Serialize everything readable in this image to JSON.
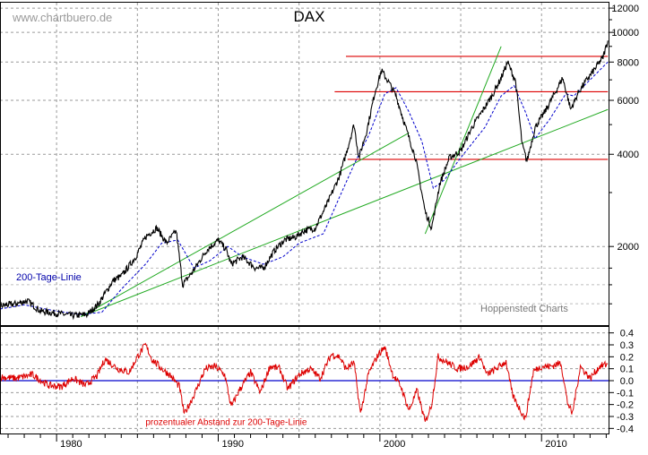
{
  "watermark": "www.chartbuero.de",
  "source": "Hoppenstedt Charts",
  "chart_data": [
    {
      "type": "line",
      "title": "DAX",
      "yscale": "log",
      "ylim": [
        1100,
        12500
      ],
      "xlim": [
        1976.5,
        2014.2
      ],
      "yticks": [
        12000,
        10000,
        8000,
        6000,
        4000,
        2000
      ],
      "xticks": [
        "1980",
        "1990",
        "2000",
        "2010"
      ],
      "grid": true,
      "series": [
        {
          "label": "",
          "color": "#000000",
          "x": [
            1976.5,
            1977.5,
            1978.2,
            1979.0,
            1980.0,
            1981.0,
            1981.9,
            1982.6,
            1983.5,
            1984.0,
            1984.9,
            1985.5,
            1986.2,
            1986.8,
            1987.4,
            1987.8,
            1988.4,
            1989.3,
            1990.0,
            1990.5,
            1990.8,
            1991.5,
            1992.3,
            1992.8,
            1993.5,
            1994.1,
            1994.8,
            1995.3,
            1996.0,
            1996.8,
            1997.5,
            1997.9,
            1998.4,
            1998.7,
            1999.2,
            1999.7,
            2000.1,
            2000.6,
            2001.0,
            2001.7,
            2002.2,
            2002.8,
            2003.2,
            2003.7,
            2004.3,
            2005.0,
            2005.7,
            2006.4,
            2007.0,
            2007.5,
            2007.9,
            2008.4,
            2008.8,
            2009.1,
            2009.6,
            2010.2,
            2010.8,
            2011.3,
            2011.6,
            2011.8,
            2012.3,
            2012.8,
            2013.3,
            2013.8,
            2014.1
          ],
          "values": [
            1280,
            1300,
            1330,
            1230,
            1210,
            1190,
            1200,
            1300,
            1550,
            1600,
            1850,
            2150,
            2300,
            2050,
            2250,
            1500,
            1650,
            1950,
            2100,
            1950,
            1750,
            1850,
            1700,
            1700,
            1950,
            2100,
            2150,
            2250,
            2300,
            2800,
            3400,
            4000,
            5000,
            3900,
            4800,
            6400,
            7500,
            6800,
            6200,
            4700,
            3900,
            2600,
            2300,
            3200,
            3900,
            4100,
            4900,
            5600,
            6300,
            7100,
            8000,
            6900,
            4300,
            3800,
            4900,
            5500,
            6300,
            7100,
            6200,
            5600,
            6400,
            7000,
            7600,
            8300,
            9400
          ]
        },
        {
          "label": "200-Tage-Linie",
          "color": "#0000cc",
          "x": [
            1976.5,
            1978.0,
            1980.0,
            1981.5,
            1982.8,
            1984.0,
            1985.5,
            1986.5,
            1987.5,
            1988.5,
            1989.5,
            1990.6,
            1991.5,
            1992.8,
            1994.0,
            1995.0,
            1996.5,
            1997.5,
            1998.5,
            1999.3,
            2000.3,
            2001.0,
            2001.8,
            2002.6,
            2003.3,
            2004.0,
            2005.0,
            2006.5,
            2007.5,
            2008.3,
            2009.0,
            2009.6,
            2010.5,
            2011.5,
            2012.0,
            2013.0,
            2014.1
          ],
          "values": [
            1250,
            1290,
            1230,
            1200,
            1220,
            1450,
            1750,
            2050,
            2100,
            1700,
            1800,
            2000,
            1850,
            1750,
            1850,
            2050,
            2200,
            2900,
            3800,
            4600,
            6300,
            6600,
            5500,
            4400,
            3100,
            3300,
            3900,
            4900,
            6200,
            6700,
            5500,
            4500,
            5200,
            6300,
            6200,
            7000,
            8000
          ]
        }
      ],
      "trendlines": [
        {
          "color": "#22aa22",
          "from": [
            1981.5,
            1180
          ],
          "to": [
            2001.8,
            4700
          ]
        },
        {
          "color": "#22aa22",
          "from": [
            1981.5,
            1180
          ],
          "to": [
            2014.1,
            5600
          ]
        },
        {
          "color": "#22aa22",
          "from": [
            2002.8,
            2200
          ],
          "to": [
            2007.5,
            9000
          ]
        }
      ],
      "levels": [
        {
          "color": "#dd0000",
          "value": 8350,
          "from": 1997.9,
          "to": 2014.1
        },
        {
          "color": "#dd0000",
          "value": 6400,
          "from": 1997.2,
          "to": 2014.1
        },
        {
          "color": "#dd0000",
          "value": 3850,
          "from": 1998.0,
          "to": 2014.1
        }
      ],
      "annotations": [
        {
          "text": "200-Tage-Linie",
          "x": 1977.5,
          "y": 1550
        }
      ]
    },
    {
      "type": "line",
      "title": "",
      "ylim": [
        -0.45,
        0.45
      ],
      "xlim": [
        1976.5,
        2014.2
      ],
      "yticks": [
        0.4,
        0.3,
        0.2,
        0.1,
        0.0,
        -0.1,
        -0.2,
        -0.3,
        -0.4
      ],
      "ytick_labels": [
        "0.4",
        "0.3",
        "0.2",
        "0.1",
        "0.0",
        "-0.1",
        "-0.2",
        "-0.3",
        "-0.4"
      ],
      "xticks": [
        "1980",
        "1990",
        "2000",
        "2010"
      ],
      "grid": true,
      "zero_line_color": "#0000cc",
      "series": [
        {
          "label": "prozentualer Abstand zur 200-Tage-Linie",
          "color": "#dd0000",
          "x": [
            1976.5,
            1977.5,
            1978.5,
            1979.5,
            1980.3,
            1981.0,
            1981.8,
            1982.5,
            1983.0,
            1983.8,
            1984.5,
            1985.0,
            1985.5,
            1985.9,
            1986.5,
            1987.0,
            1987.6,
            1987.9,
            1988.5,
            1989.2,
            1989.8,
            1990.4,
            1990.8,
            1991.3,
            1992.0,
            1992.6,
            1993.2,
            1993.8,
            1994.3,
            1995.0,
            1995.7,
            1996.3,
            1997.0,
            1997.5,
            1997.9,
            1998.4,
            1998.8,
            1999.3,
            1999.9,
            2000.3,
            2000.8,
            2001.3,
            2001.8,
            2002.3,
            2002.8,
            2003.2,
            2003.6,
            2004.2,
            2004.8,
            2005.5,
            2006.2,
            2006.6,
            2007.2,
            2007.8,
            2008.2,
            2008.7,
            2009.0,
            2009.5,
            2010.0,
            2010.6,
            2011.2,
            2011.6,
            2011.9,
            2012.4,
            2013.0,
            2013.6,
            2014.1
          ],
          "values": [
            0.03,
            0.02,
            0.05,
            -0.04,
            -0.05,
            0.02,
            -0.04,
            0.04,
            0.18,
            0.1,
            0.07,
            0.2,
            0.3,
            0.18,
            0.1,
            0.05,
            -0.05,
            -0.28,
            -0.12,
            0.1,
            0.12,
            0.05,
            -0.22,
            -0.08,
            0.07,
            -0.1,
            0.12,
            0.1,
            -0.07,
            0.05,
            0.1,
            0.02,
            0.22,
            0.2,
            0.1,
            0.15,
            -0.28,
            0.06,
            0.22,
            0.28,
            0.05,
            -0.05,
            -0.25,
            -0.08,
            -0.35,
            -0.2,
            0.2,
            0.15,
            0.1,
            0.12,
            0.2,
            0.05,
            0.1,
            0.16,
            -0.12,
            -0.25,
            -0.32,
            0.08,
            0.12,
            0.12,
            0.15,
            -0.18,
            -0.28,
            0.12,
            0.02,
            0.12,
            0.14
          ]
        }
      ],
      "annotations": [
        {
          "text": "prozentualer Abstand zur 200-Tage-Linie",
          "x": 1985.5,
          "y": -0.35
        }
      ]
    }
  ]
}
